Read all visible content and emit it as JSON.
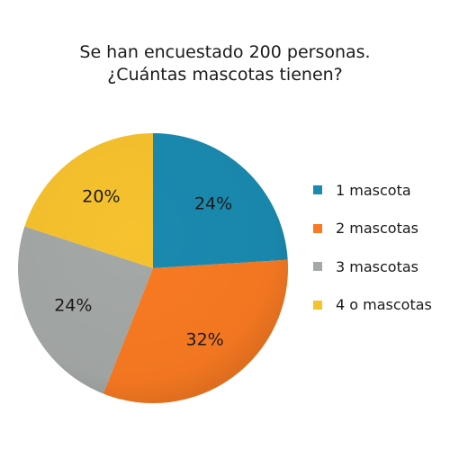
{
  "chart_data": {
    "type": "pie",
    "title": [
      "Se han encuestado 200 personas.",
      "¿Cuántas mascotas tienen?"
    ],
    "slices": [
      {
        "label": "1 mascota",
        "value": 24,
        "value_label": "24%",
        "color": "#1a8ab0"
      },
      {
        "label": "2 mascotas",
        "value": 32,
        "value_label": "32%",
        "color": "#f97a22"
      },
      {
        "label": "3 mascotas",
        "value": 24,
        "value_label": "24%",
        "color": "#a4a8a6"
      },
      {
        "label": "4 o mascotas",
        "value": 20,
        "value_label": "20%",
        "color": "#f7c22e"
      }
    ],
    "legend_position": "right"
  }
}
